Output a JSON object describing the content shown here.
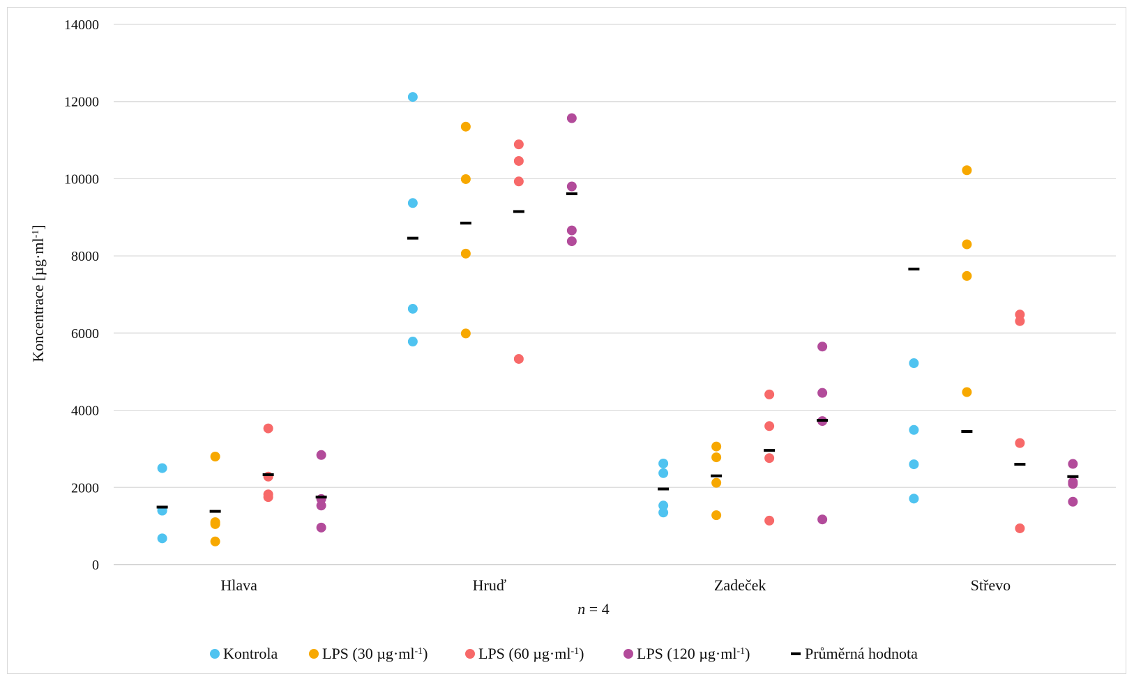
{
  "chart_data": {
    "type": "scatter",
    "title": "",
    "xlabel": "n = 4",
    "ylabel": "Koncentrace [µg·ml⁻¹]",
    "ylim": [
      0,
      14000
    ],
    "yticks": [
      "0",
      "2000",
      "4000",
      "6000",
      "8000",
      "10000",
      "12000",
      "14000"
    ],
    "grid": true,
    "legend_placement": "bottom",
    "categories": [
      "Hlava",
      "Hruď",
      "Zadeček",
      "Střevo"
    ],
    "series": [
      {
        "name": "Kontrola",
        "color": "#4fc3f0",
        "values": [
          [
            2500,
            1400,
            1400,
            680
          ],
          [
            12120,
            9370,
            6630,
            5780
          ],
          [
            2620,
            2370,
            1530,
            1350
          ],
          [
            5220,
            3490,
            2600,
            1710
          ]
        ]
      },
      {
        "name": "LPS (30 µg·ml⁻¹)",
        "color": "#f7a800",
        "values": [
          [
            2800,
            1100,
            1050,
            600
          ],
          [
            11350,
            9990,
            8060,
            5990
          ],
          [
            3060,
            2780,
            2120,
            1280
          ],
          [
            10220,
            8300,
            7480,
            4470
          ]
        ]
      },
      {
        "name": "LPS (60 µg·ml⁻¹)",
        "color": "#f76969",
        "values": [
          [
            3530,
            2280,
            1820,
            1750
          ],
          [
            10890,
            10460,
            9930,
            5330
          ],
          [
            4410,
            3590,
            2760,
            1140
          ],
          [
            6480,
            6310,
            3150,
            940
          ]
        ]
      },
      {
        "name": "LPS (120 µg·ml⁻¹)",
        "color": "#b24b9a",
        "values": [
          [
            2840,
            1700,
            1530,
            960
          ],
          [
            11570,
            9800,
            8660,
            8380
          ],
          [
            5650,
            4450,
            3720,
            1170
          ],
          [
            2610,
            2140,
            2090,
            1630
          ]
        ]
      }
    ],
    "mean": {
      "name": "Průměrná hodnota",
      "color": "#000000",
      "values": [
        [
          1490,
          1380,
          2330,
          1750
        ],
        [
          8460,
          8850,
          9150,
          9610
        ],
        [
          1960,
          2300,
          2960,
          3740
        ],
        [
          7660,
          3450,
          2600,
          2280
        ]
      ]
    }
  }
}
